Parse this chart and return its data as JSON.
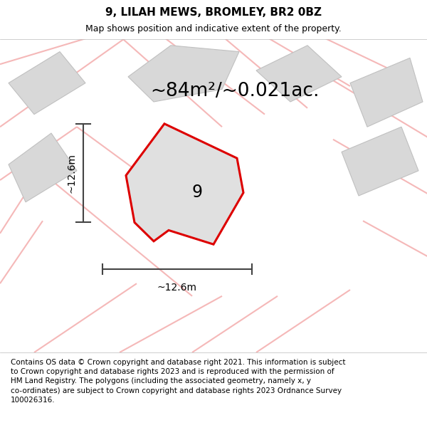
{
  "title_line1": "9, LILAH MEWS, BROMLEY, BR2 0BZ",
  "title_line2": "Map shows position and indicative extent of the property.",
  "area_label": "~84m²/~0.021ac.",
  "property_number": "9",
  "dim_v": "~12.6m",
  "dim_h": "~12.6m",
  "footer": "Contains OS data © Crown copyright and database right 2021. This information is subject\nto Crown copyright and database rights 2023 and is reproduced with the permission of\nHM Land Registry. The polygons (including the associated geometry, namely x, y\nco-ordinates) are subject to Crown copyright and database rights 2023 Ordnance Survey\n100026316.",
  "map_bg": "#f5f5f5",
  "property_fill": "#e0e0e0",
  "property_edge": "#dd0000",
  "road_color": "#f5b8b8",
  "building_fill": "#d8d8d8",
  "building_edge": "#c0c0c0",
  "dim_line_color": "#444444",
  "text_color": "#000000",
  "title_fontsize": 11,
  "subtitle_fontsize": 9,
  "area_fontsize": 19,
  "number_fontsize": 17,
  "dim_fontsize": 10,
  "footer_fontsize": 7.5
}
